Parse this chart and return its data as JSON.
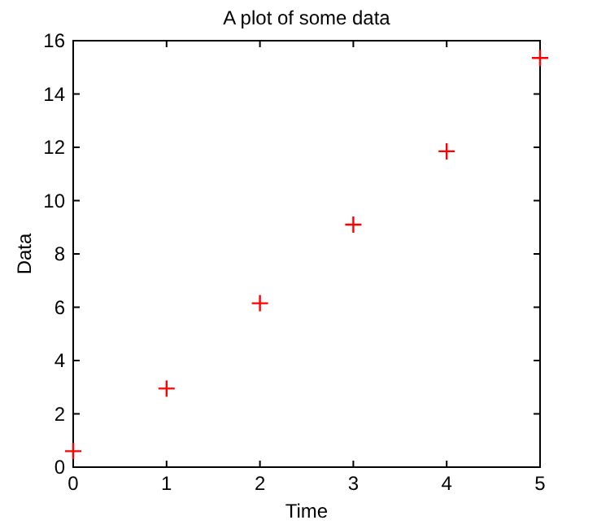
{
  "chart_data": {
    "type": "scatter",
    "title": "A plot of some data",
    "xlabel": "Time",
    "ylabel": "Data",
    "x": [
      0,
      1,
      2,
      3,
      4,
      5
    ],
    "series": [
      {
        "color": "#ff0000",
        "values": [
          0.6,
          2.95,
          6.15,
          9.1,
          11.85,
          15.35
        ]
      }
    ],
    "xlim": [
      0,
      5
    ],
    "xticks": [
      0,
      1,
      2,
      3,
      4,
      5
    ],
    "ylim": [
      0,
      16
    ],
    "yticks": [
      0,
      2,
      4,
      6,
      8,
      10,
      12,
      14,
      16
    ],
    "marker": "cross",
    "grid": false
  }
}
